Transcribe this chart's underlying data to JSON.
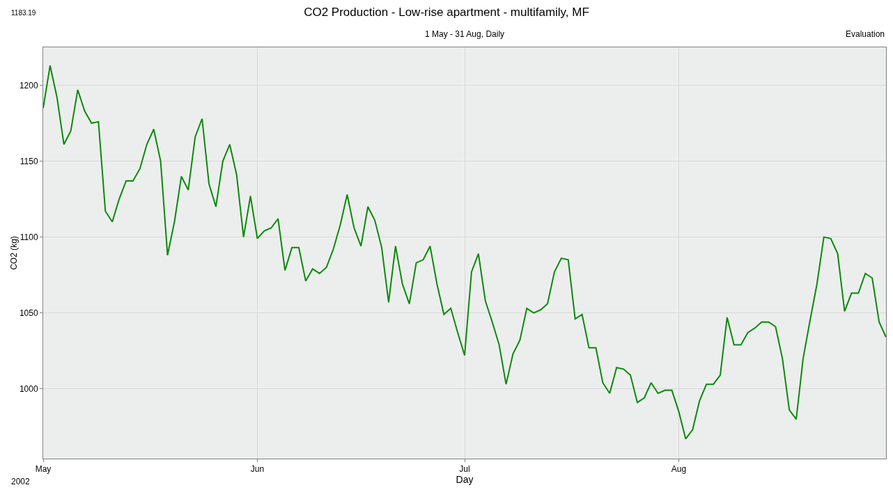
{
  "chart_data": {
    "type": "line",
    "title": "CO2 Production - Low-rise apartment - multifamily, MF",
    "subtitle": "1 May - 31 Aug, Daily",
    "xlabel": "Day",
    "ylabel": "CO2 (kg)",
    "annotations": [
      "1183.19",
      "Evaluation",
      "2002"
    ],
    "x": [
      "2002-05-01",
      "2002-05-02",
      "2002-05-03",
      "2002-05-04",
      "2002-05-05",
      "2002-05-06",
      "2002-05-07",
      "2002-05-08",
      "2002-05-09",
      "2002-05-10",
      "2002-05-11",
      "2002-05-12",
      "2002-05-13",
      "2002-05-14",
      "2002-05-15",
      "2002-05-16",
      "2002-05-17",
      "2002-05-18",
      "2002-05-19",
      "2002-05-20",
      "2002-05-21",
      "2002-05-22",
      "2002-05-23",
      "2002-05-24",
      "2002-05-25",
      "2002-05-26",
      "2002-05-27",
      "2002-05-28",
      "2002-05-29",
      "2002-05-30",
      "2002-05-31",
      "2002-06-01",
      "2002-06-02",
      "2002-06-03",
      "2002-06-04",
      "2002-06-05",
      "2002-06-06",
      "2002-06-07",
      "2002-06-08",
      "2002-06-09",
      "2002-06-10",
      "2002-06-11",
      "2002-06-12",
      "2002-06-13",
      "2002-06-14",
      "2002-06-15",
      "2002-06-16",
      "2002-06-17",
      "2002-06-18",
      "2002-06-19",
      "2002-06-20",
      "2002-06-21",
      "2002-06-22",
      "2002-06-23",
      "2002-06-24",
      "2002-06-25",
      "2002-06-26",
      "2002-06-27",
      "2002-06-28",
      "2002-06-29",
      "2002-06-30",
      "2002-07-01",
      "2002-07-02",
      "2002-07-03",
      "2002-07-04",
      "2002-07-05",
      "2002-07-06",
      "2002-07-07",
      "2002-07-08",
      "2002-07-09",
      "2002-07-10",
      "2002-07-11",
      "2002-07-12",
      "2002-07-13",
      "2002-07-14",
      "2002-07-15",
      "2002-07-16",
      "2002-07-17",
      "2002-07-18",
      "2002-07-19",
      "2002-07-20",
      "2002-07-21",
      "2002-07-22",
      "2002-07-23",
      "2002-07-24",
      "2002-07-25",
      "2002-07-26",
      "2002-07-27",
      "2002-07-28",
      "2002-07-29",
      "2002-07-30",
      "2002-07-31",
      "2002-08-01",
      "2002-08-02",
      "2002-08-03",
      "2002-08-04",
      "2002-08-05",
      "2002-08-06",
      "2002-08-07",
      "2002-08-08",
      "2002-08-09",
      "2002-08-10",
      "2002-08-11",
      "2002-08-12",
      "2002-08-13",
      "2002-08-14",
      "2002-08-15",
      "2002-08-16",
      "2002-08-17",
      "2002-08-18",
      "2002-08-19",
      "2002-08-20",
      "2002-08-21",
      "2002-08-22",
      "2002-08-23",
      "2002-08-24",
      "2002-08-25",
      "2002-08-26",
      "2002-08-27",
      "2002-08-28",
      "2002-08-29",
      "2002-08-30",
      "2002-08-31"
    ],
    "series": [
      {
        "color": "#0a8a0a",
        "values": [
          1185,
          1213,
          1192,
          1161,
          1170,
          1197,
          1183,
          1175,
          1176,
          1117,
          1110,
          1125,
          1137,
          1137,
          1145,
          1161,
          1171,
          1150,
          1088,
          1110,
          1140,
          1131,
          1166,
          1178,
          1135,
          1120,
          1150,
          1161,
          1141,
          1100,
          1127,
          1099,
          1104,
          1106,
          1112,
          1078,
          1093,
          1093,
          1071,
          1079,
          1076,
          1080,
          1092,
          1108,
          1128,
          1106,
          1094,
          1120,
          1111,
          1093,
          1057,
          1094,
          1069,
          1056,
          1083,
          1085,
          1094,
          1069,
          1049,
          1053,
          1037,
          1022,
          1077,
          1089,
          1058,
          1044,
          1029,
          1003,
          1023,
          1032,
          1053,
          1050,
          1052,
          1056,
          1077,
          1086,
          1085,
          1046,
          1049,
          1027,
          1027,
          1004,
          997,
          1014,
          1013,
          1009,
          991,
          994,
          1004,
          997,
          999,
          999,
          985,
          967,
          973,
          992,
          1003,
          1003,
          1009,
          1047,
          1029,
          1029,
          1037,
          1040,
          1044,
          1044,
          1041,
          1020,
          986,
          980,
          1020,
          1045,
          1069,
          1100,
          1099,
          1089,
          1051,
          1063,
          1063,
          1076,
          1073,
          1044,
          1034
        ]
      }
    ],
    "xlim": [
      "2002-05-01",
      "2002-08-31"
    ],
    "xticks": [
      {
        "value": "2002-05-01",
        "label": "May"
      },
      {
        "value": "2002-06-01",
        "label": "Jun"
      },
      {
        "value": "2002-07-01",
        "label": "Jul"
      },
      {
        "value": "2002-08-01",
        "label": "Aug"
      }
    ],
    "ylim": [
      954,
      1225
    ],
    "yticks": [
      1000,
      1050,
      1100,
      1150,
      1200
    ],
    "grid": true,
    "marker": "none",
    "line_style": "solid"
  }
}
